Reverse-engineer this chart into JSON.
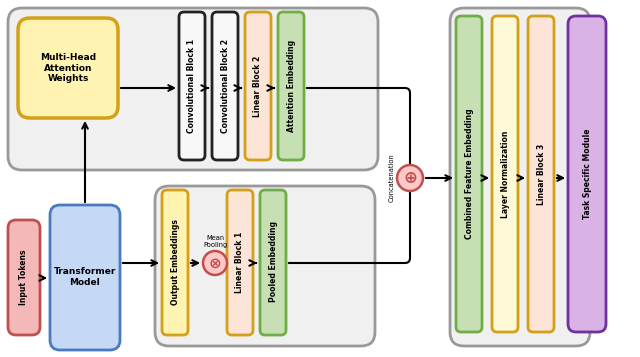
{
  "fig_width": 6.4,
  "fig_height": 3.57,
  "dpi": 100,
  "bg_color": "#ffffff",
  "colors": {
    "yellow_fill": "#fef3b0",
    "yellow_border": "#d4a017",
    "blue_fill": "#c5d8f5",
    "blue_border": "#4a7abf",
    "red_fill": "#f5b8b8",
    "red_border": "#c0504d",
    "green_fill": "#c6e0b4",
    "green_border": "#70ad47",
    "orange_fill": "#fce4d6",
    "orange_border": "#d4a017",
    "yellow2_fill": "#fef9d7",
    "yellow2_border": "#d4a017",
    "purple_fill": "#d9b3e6",
    "purple_border": "#7030a0",
    "gray_bg": "#f0f0f0",
    "gray_border": "#888888",
    "black_border": "#222222",
    "white_fill": "#f8f8f8",
    "concat_fill": "#f5b8b8",
    "concat_border": "#c0504d"
  },
  "labels": {
    "input_tokens": "Input Tokens",
    "transformer_model": "Transformer\nModel",
    "multi_head": "Multi-Head\nAttention\nWeights",
    "conv_block1": "Convolutional Block 1",
    "conv_block2": "Convolutional Block 2",
    "linear_block2": "Linear Block 2",
    "attention_embedding": "Attention Embedding",
    "output_embeddings": "Output Embeddings",
    "mean_pooling": "Mean\nPooling",
    "linear_block1": "Linear Block 1",
    "pooled_embedding": "Pooled Embedding",
    "combined_feature": "Combined Feature Embedding",
    "layer_norm": "Layer Normalization",
    "linear_block3": "Linear Block 3",
    "task_specific": "Task Specific Module",
    "concatenation": "Concatenation"
  }
}
